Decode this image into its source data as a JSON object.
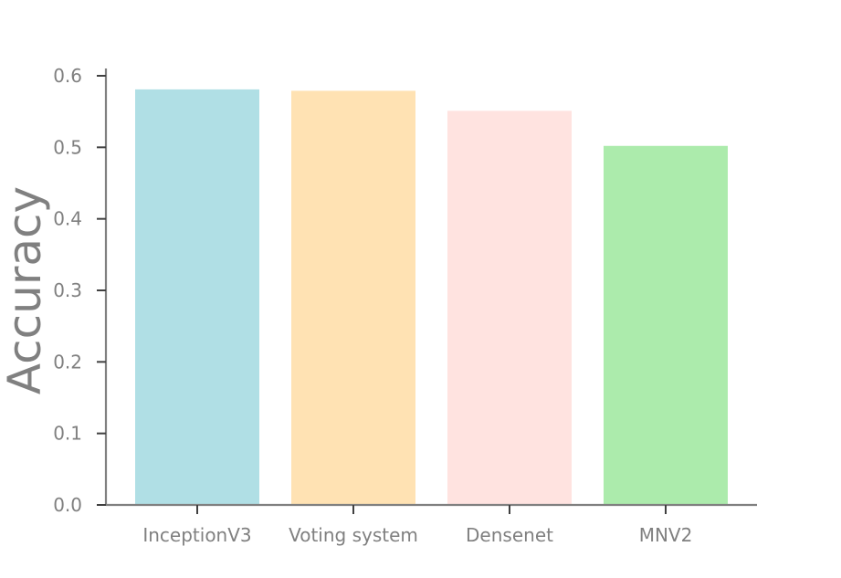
{
  "chart_data": {
    "type": "bar",
    "title": "",
    "xlabel": "",
    "ylabel": "Accuracy",
    "categories": [
      "InceptionV3",
      "Voting system",
      "Densenet",
      "MNV2"
    ],
    "values": [
      0.581,
      0.579,
      0.551,
      0.502
    ],
    "colors": [
      "#b0dfe5",
      "#ffe2b3",
      "#ffe3e0",
      "#acebac"
    ],
    "ylim": [
      0,
      0.61
    ],
    "yticks": [
      0.0,
      0.1,
      0.2,
      0.3,
      0.4,
      0.5,
      0.6
    ],
    "ytick_labels": [
      "0.0",
      "0.1",
      "0.2",
      "0.3",
      "0.4",
      "0.5",
      "0.6"
    ],
    "grid": false,
    "legend": "none",
    "axis_color": "#808080",
    "text_color": "#808080"
  }
}
